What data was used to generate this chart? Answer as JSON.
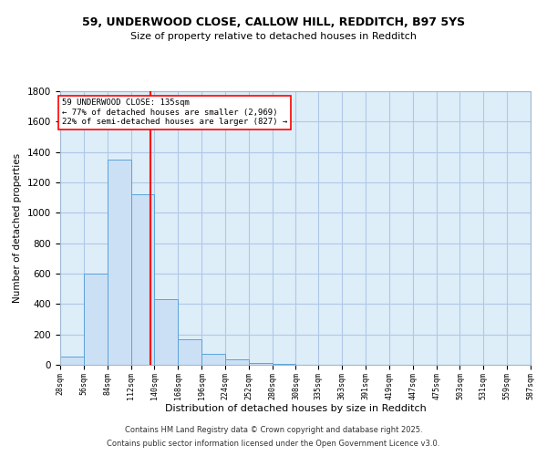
{
  "title_line1": "59, UNDERWOOD CLOSE, CALLOW HILL, REDDITCH, B97 5YS",
  "title_line2": "Size of property relative to detached houses in Redditch",
  "xlabel": "Distribution of detached houses by size in Redditch",
  "ylabel": "Number of detached properties",
  "bar_edges": [
    28,
    56,
    84,
    112,
    140,
    168,
    196,
    224,
    252,
    280,
    308,
    335,
    363,
    391,
    419,
    447,
    475,
    503,
    531,
    559,
    587
  ],
  "bar_heights": [
    55,
    600,
    1350,
    1120,
    430,
    170,
    70,
    35,
    10,
    5,
    2,
    1,
    1,
    1,
    0,
    0,
    0,
    0,
    0,
    0
  ],
  "tick_labels": [
    "28sqm",
    "56sqm",
    "84sqm",
    "112sqm",
    "140sqm",
    "168sqm",
    "196sqm",
    "224sqm",
    "252sqm",
    "280sqm",
    "308sqm",
    "335sqm",
    "363sqm",
    "391sqm",
    "419sqm",
    "447sqm",
    "475sqm",
    "503sqm",
    "531sqm",
    "559sqm",
    "587sqm"
  ],
  "bar_color": "#cce0f5",
  "bar_edge_color": "#5ba3d9",
  "grid_color": "#b0c8e8",
  "background_color": "#ddeef9",
  "vline_x": 135,
  "vline_color": "red",
  "annotation_text": "59 UNDERWOOD CLOSE: 135sqm\n← 77% of detached houses are smaller (2,969)\n22% of semi-detached houses are larger (827) →",
  "annotation_box_color": "white",
  "annotation_box_edge": "red",
  "ylim": [
    0,
    1800
  ],
  "yticks": [
    0,
    200,
    400,
    600,
    800,
    1000,
    1200,
    1400,
    1600,
    1800
  ],
  "footer_line1": "Contains HM Land Registry data © Crown copyright and database right 2025.",
  "footer_line2": "Contains public sector information licensed under the Open Government Licence v3.0."
}
